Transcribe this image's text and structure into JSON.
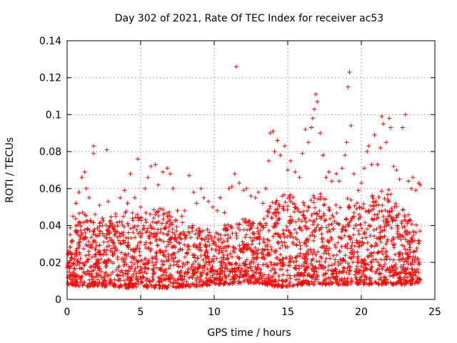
{
  "chart_data": {
    "type": "scatter",
    "title": "Day 302 of 2021, Rate Of TEC Index for receiver ac53",
    "xlabel": "GPS time / hours",
    "ylabel": "ROTI / TECUs",
    "xlim": [
      0,
      25
    ],
    "ylim": [
      0,
      0.14
    ],
    "xticks": [
      0,
      5,
      10,
      15,
      20,
      25
    ],
    "xtick_labels": [
      "0",
      "5",
      "10",
      "15",
      "20",
      "25"
    ],
    "yticks": [
      0,
      0.02,
      0.04,
      0.06,
      0.08,
      0.1,
      0.12,
      0.14
    ],
    "ytick_labels": [
      "0",
      "0.02",
      "0.04",
      "0.06",
      "0.08",
      "0.1",
      "0.12",
      "0.14"
    ],
    "grid": true,
    "marker": "+",
    "marker_color": "#ff0000",
    "points": [
      [
        0.1,
        0.018
      ],
      [
        0.3,
        0.031
      ],
      [
        0.4,
        0.045
      ],
      [
        0.6,
        0.052
      ],
      [
        0.8,
        0.058
      ],
      [
        1.0,
        0.066
      ],
      [
        1.2,
        0.069
      ],
      [
        1.3,
        0.06
      ],
      [
        1.5,
        0.055
      ],
      [
        1.8,
        0.083
      ],
      [
        1.8,
        0.079
      ],
      [
        1.9,
        0.046
      ],
      [
        2.2,
        0.051
      ],
      [
        2.4,
        0.044
      ],
      [
        2.7,
        0.081
      ],
      [
        2.8,
        0.053
      ],
      [
        3.0,
        0.04
      ],
      [
        3.3,
        0.045
      ],
      [
        3.6,
        0.055
      ],
      [
        3.9,
        0.059
      ],
      [
        4.1,
        0.052
      ],
      [
        4.3,
        0.068
      ],
      [
        4.6,
        0.055
      ],
      [
        4.8,
        0.076
      ],
      [
        5.0,
        0.05
      ],
      [
        5.3,
        0.06
      ],
      [
        5.5,
        0.066
      ],
      [
        5.7,
        0.072
      ],
      [
        6.0,
        0.073
      ],
      [
        6.2,
        0.062
      ],
      [
        6.5,
        0.069
      ],
      [
        6.8,
        0.071
      ],
      [
        7.0,
        0.068
      ],
      [
        7.2,
        0.06
      ],
      [
        7.5,
        0.048
      ],
      [
        7.8,
        0.045
      ],
      [
        8.0,
        0.048
      ],
      [
        8.3,
        0.067
      ],
      [
        8.6,
        0.058
      ],
      [
        8.8,
        0.052
      ],
      [
        9.1,
        0.06
      ],
      [
        9.3,
        0.055
      ],
      [
        9.6,
        0.053
      ],
      [
        9.9,
        0.05
      ],
      [
        10.2,
        0.048
      ],
      [
        10.4,
        0.055
      ],
      [
        10.7,
        0.047
      ],
      [
        11.0,
        0.06
      ],
      [
        11.2,
        0.061
      ],
      [
        11.4,
        0.068
      ],
      [
        11.5,
        0.126
      ],
      [
        11.7,
        0.063
      ],
      [
        12.0,
        0.059
      ],
      [
        12.2,
        0.06
      ],
      [
        12.5,
        0.056
      ],
      [
        12.8,
        0.055
      ],
      [
        13.0,
        0.058
      ],
      [
        13.3,
        0.052
      ],
      [
        13.5,
        0.06
      ],
      [
        13.7,
        0.075
      ],
      [
        13.8,
        0.09
      ],
      [
        14.0,
        0.091
      ],
      [
        14.1,
        0.08
      ],
      [
        14.3,
        0.086
      ],
      [
        14.5,
        0.078
      ],
      [
        14.8,
        0.083
      ],
      [
        15.0,
        0.07
      ],
      [
        15.2,
        0.075
      ],
      [
        15.5,
        0.069
      ],
      [
        15.8,
        0.066
      ],
      [
        16.0,
        0.079
      ],
      [
        16.2,
        0.092
      ],
      [
        16.4,
        0.085
      ],
      [
        16.6,
        0.093
      ],
      [
        16.7,
        0.098
      ],
      [
        16.8,
        0.103
      ],
      [
        16.9,
        0.111
      ],
      [
        17.0,
        0.107
      ],
      [
        17.2,
        0.09
      ],
      [
        17.4,
        0.078
      ],
      [
        17.6,
        0.066
      ],
      [
        17.8,
        0.069
      ],
      [
        18.0,
        0.064
      ],
      [
        18.3,
        0.068
      ],
      [
        18.5,
        0.064
      ],
      [
        18.7,
        0.071
      ],
      [
        18.9,
        0.078
      ],
      [
        19.0,
        0.085
      ],
      [
        19.1,
        0.115
      ],
      [
        19.2,
        0.123
      ],
      [
        19.3,
        0.094
      ],
      [
        19.5,
        0.068
      ],
      [
        19.8,
        0.059
      ],
      [
        20.0,
        0.063
      ],
      [
        20.2,
        0.071
      ],
      [
        20.4,
        0.08
      ],
      [
        20.5,
        0.083
      ],
      [
        20.7,
        0.073
      ],
      [
        20.9,
        0.089
      ],
      [
        21.1,
        0.073
      ],
      [
        21.3,
        0.082
      ],
      [
        21.4,
        0.099
      ],
      [
        21.5,
        0.095
      ],
      [
        21.7,
        0.085
      ],
      [
        21.9,
        0.098
      ],
      [
        22.0,
        0.093
      ],
      [
        22.2,
        0.072
      ],
      [
        22.4,
        0.07
      ],
      [
        22.6,
        0.065
      ],
      [
        22.8,
        0.093
      ],
      [
        23.0,
        0.1
      ],
      [
        23.2,
        0.064
      ],
      [
        23.4,
        0.06
      ],
      [
        23.5,
        0.066
      ],
      [
        23.7,
        0.059
      ],
      [
        23.9,
        0.063
      ],
      [
        24.0,
        0.062
      ]
    ],
    "bulk_band": {
      "description_of_dense_region": "dense scatter of points between roughly 0.006 and 0.045 ROTI across 0-24 hours",
      "x": [
        0,
        1,
        2,
        3,
        4,
        5,
        6,
        7,
        8,
        9,
        10,
        11,
        12,
        13,
        14,
        15,
        16,
        17,
        18,
        19,
        20,
        21,
        22,
        23,
        24
      ],
      "upper": [
        0.04,
        0.048,
        0.042,
        0.046,
        0.048,
        0.046,
        0.05,
        0.048,
        0.042,
        0.04,
        0.036,
        0.042,
        0.044,
        0.04,
        0.055,
        0.058,
        0.052,
        0.06,
        0.05,
        0.055,
        0.052,
        0.058,
        0.06,
        0.048,
        0.04
      ],
      "lower": [
        0.008,
        0.007,
        0.007,
        0.007,
        0.006,
        0.007,
        0.006,
        0.006,
        0.007,
        0.007,
        0.008,
        0.008,
        0.009,
        0.009,
        0.007,
        0.007,
        0.008,
        0.008,
        0.008,
        0.008,
        0.008,
        0.008,
        0.008,
        0.008,
        0.009
      ]
    }
  }
}
